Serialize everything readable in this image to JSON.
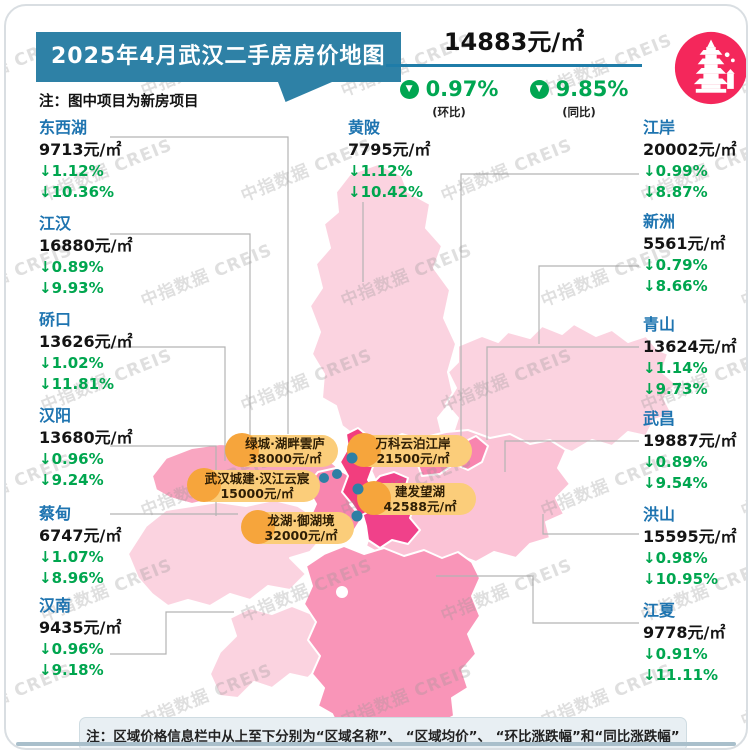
{
  "title": "2025年4月武汉二手房房价地图",
  "subtitle_note": "注：图中项目为新房项目",
  "summary": {
    "avg_price": "14883元/㎡",
    "mom": {
      "value": "0.97%",
      "label": "(环比)"
    },
    "yoy": {
      "value": "9.85%",
      "label": "(同比)"
    }
  },
  "districts": {
    "left": [
      {
        "name": "东西湖",
        "price": "9713元/㎡",
        "mom": "↓1.12%",
        "yoy": "↓10.36%"
      },
      {
        "name": "江汉",
        "price": "16880元/㎡",
        "mom": "↓0.89%",
        "yoy": "↓9.93%"
      },
      {
        "name": "硚口",
        "price": "13626元/㎡",
        "mom": "↓1.02%",
        "yoy": "↓11.81%"
      },
      {
        "name": "汉阳",
        "price": "13680元/㎡",
        "mom": "↓0.96%",
        "yoy": "↓9.24%"
      },
      {
        "name": "蔡甸",
        "price": "6747元/㎡",
        "mom": "↓1.07%",
        "yoy": "↓8.96%"
      },
      {
        "name": "汉南",
        "price": "9435元/㎡",
        "mom": "↓0.96%",
        "yoy": "↓9.18%"
      }
    ],
    "top": [
      {
        "name": "黄陂",
        "price": "7795元/㎡",
        "mom": "↓1.12%",
        "yoy": "↓10.42%"
      }
    ],
    "right": [
      {
        "name": "江岸",
        "price": "20002元/㎡",
        "mom": "↓0.99%",
        "yoy": "↓8.87%"
      },
      {
        "name": "新洲",
        "price": "5561元/㎡",
        "mom": "↓0.79%",
        "yoy": "↓8.66%"
      },
      {
        "name": "青山",
        "price": "13624元/㎡",
        "mom": "↓1.14%",
        "yoy": "↓9.73%"
      },
      {
        "name": "武昌",
        "price": "19887元/㎡",
        "mom": "↓0.89%",
        "yoy": "↓9.54%"
      },
      {
        "name": "洪山",
        "price": "15595元/㎡",
        "mom": "↓0.98%",
        "yoy": "↓10.95%"
      },
      {
        "name": "江夏",
        "price": "9778元/㎡",
        "mom": "↓0.91%",
        "yoy": "↓11.11%"
      }
    ]
  },
  "projects": [
    {
      "name": "绿城·湖畔雲庐",
      "price": "38000元/㎡"
    },
    {
      "name": "万科云泊江岸",
      "price": "21500元/㎡"
    },
    {
      "name": "武汉城建·汉江云宸",
      "price": "15000元/㎡"
    },
    {
      "name": "建发望湖",
      "price": "42588元/㎡"
    },
    {
      "name": "龙湖·御湖境",
      "price": "32000元/㎡"
    }
  ],
  "footer_note": "注：区域价格信息栏中从上至下分别为“区域名称”、 “区域均价”、 “环比涨跌幅”和“同比涨跌幅”",
  "watermark": "中指数据 CREIS",
  "colors": {
    "banner_teal": "#2E81A6",
    "green": "#00A651",
    "district_name_blue": "#1E74B0",
    "logo_pink": "#F4275B",
    "pill_orange": "#FBCD7A",
    "pill_accent_orange": "#F6A53C",
    "map_deep_magenta": "#F23E7E",
    "map_mid_pink": "#F885AF",
    "map_rose": "#F995B8",
    "map_light_pink": "#FBD3E0",
    "project_dot_blue": "#2E7FA4"
  }
}
